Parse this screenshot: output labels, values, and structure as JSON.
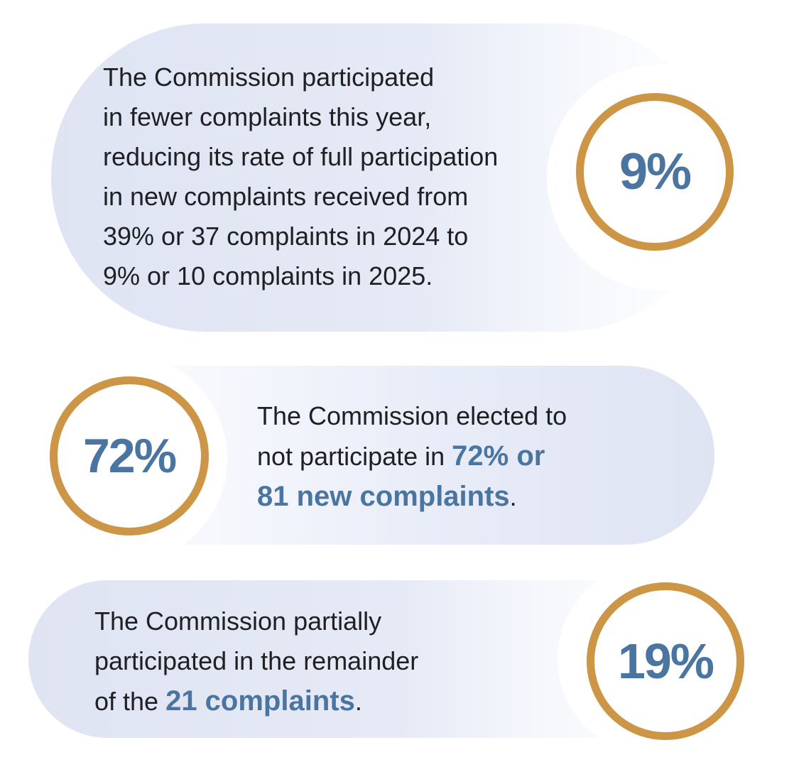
{
  "blocks": [
    {
      "percent": "9%",
      "lines": [
        "The Commission participated",
        "in fewer complaints this year,",
        "reducing its rate of full participation",
        "in new complaints received from",
        "39% or 37 complaints in 2024 to",
        "9% or 10 complaints in 2025."
      ]
    },
    {
      "percent": "72%",
      "line1": "The Commission elected to",
      "line2_plain": "not participate in ",
      "line2_highlight": "72% or",
      "line3_highlight": "81 new complaints",
      "line3_end": "."
    },
    {
      "percent": "19%",
      "line1": "The Commission partially",
      "line2": "participated in the remainder",
      "line3_plain": "of the ",
      "line3_highlight": "21 complaints",
      "line3_end": "."
    }
  ],
  "colors": {
    "accent_blue": "#4a75a1",
    "ring_gold": "#cc9646",
    "card_lavender": "#dfe4f3",
    "text_dark": "#1f1f24"
  }
}
